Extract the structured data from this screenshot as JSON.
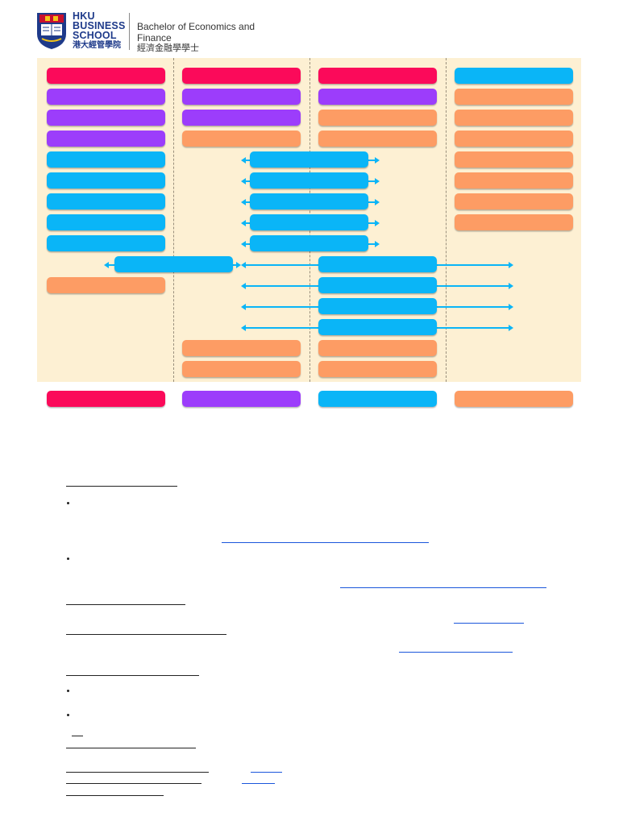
{
  "header": {
    "school_lines": [
      "HKU",
      "BUSINESS",
      "SCHOOL"
    ],
    "school_chinese": "港大經管學院",
    "program_en": "Bachelor of Economics and Finance",
    "program_zh": "經濟金融學學士"
  },
  "colors": {
    "crimson": "#fb0a5a",
    "purple": "#9c3dfb",
    "blue": "#0ab5f7",
    "orange": "#fd9c64",
    "map_background": "#fdf0d3",
    "link": "#1a56db"
  },
  "curriculum_map": {
    "columns": 4,
    "column_1": [
      "crimson",
      "purple",
      "purple",
      "purple",
      "blue",
      "blue",
      "blue",
      "blue",
      "blue",
      "blue",
      "orange"
    ],
    "column_2": [
      "crimson",
      "purple",
      "purple",
      "orange",
      "blue",
      "blue",
      "blue",
      "blue",
      "blue",
      "orange",
      "orange"
    ],
    "column_3": [
      "crimson",
      "purple",
      "orange",
      "orange",
      "blue",
      "blue",
      "blue",
      "blue",
      "orange",
      "orange"
    ],
    "column_4": [
      "blue",
      "orange",
      "orange",
      "orange",
      "orange",
      "orange",
      "orange",
      "orange"
    ]
  },
  "legend": [
    "crimson",
    "purple",
    "blue",
    "orange"
  ]
}
